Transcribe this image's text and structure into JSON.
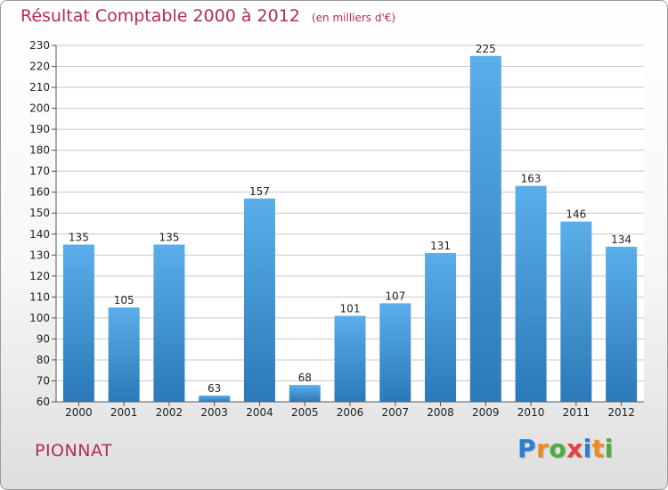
{
  "title": "Résultat Comptable 2000 à 2012",
  "unit_note": "(en milliers d'€)",
  "commune": "PIONNAT",
  "logo": {
    "text": "Proxiti",
    "letters": [
      {
        "char": "P",
        "color": "#2a7fd4"
      },
      {
        "char": "r",
        "color": "#f08a1c"
      },
      {
        "char": "o",
        "color": "#4caf3c"
      },
      {
        "char": "x",
        "color": "#e83f3f"
      },
      {
        "char": "i",
        "color": "#2a7fd4"
      },
      {
        "char": "t",
        "color": "#f08a1c"
      },
      {
        "char": "i",
        "color": "#4caf3c"
      }
    ]
  },
  "colors": {
    "title": "#b32a54",
    "bar_top": "#5aaeea",
    "bar_bottom": "#2b79b8",
    "grid": "#c8c8c8"
  },
  "chart_data": {
    "type": "bar",
    "categories": [
      "2000",
      "2001",
      "2002",
      "2003",
      "2004",
      "2005",
      "2006",
      "2007",
      "2008",
      "2009",
      "2010",
      "2011",
      "2012"
    ],
    "values": [
      135,
      105,
      135,
      63,
      157,
      68,
      101,
      107,
      131,
      225,
      163,
      146,
      134
    ],
    "ylim": [
      60,
      230
    ],
    "yticks": [
      60,
      70,
      80,
      90,
      100,
      110,
      120,
      130,
      140,
      150,
      160,
      170,
      180,
      190,
      200,
      210,
      220,
      230
    ],
    "grid": true,
    "data_labels": true
  }
}
